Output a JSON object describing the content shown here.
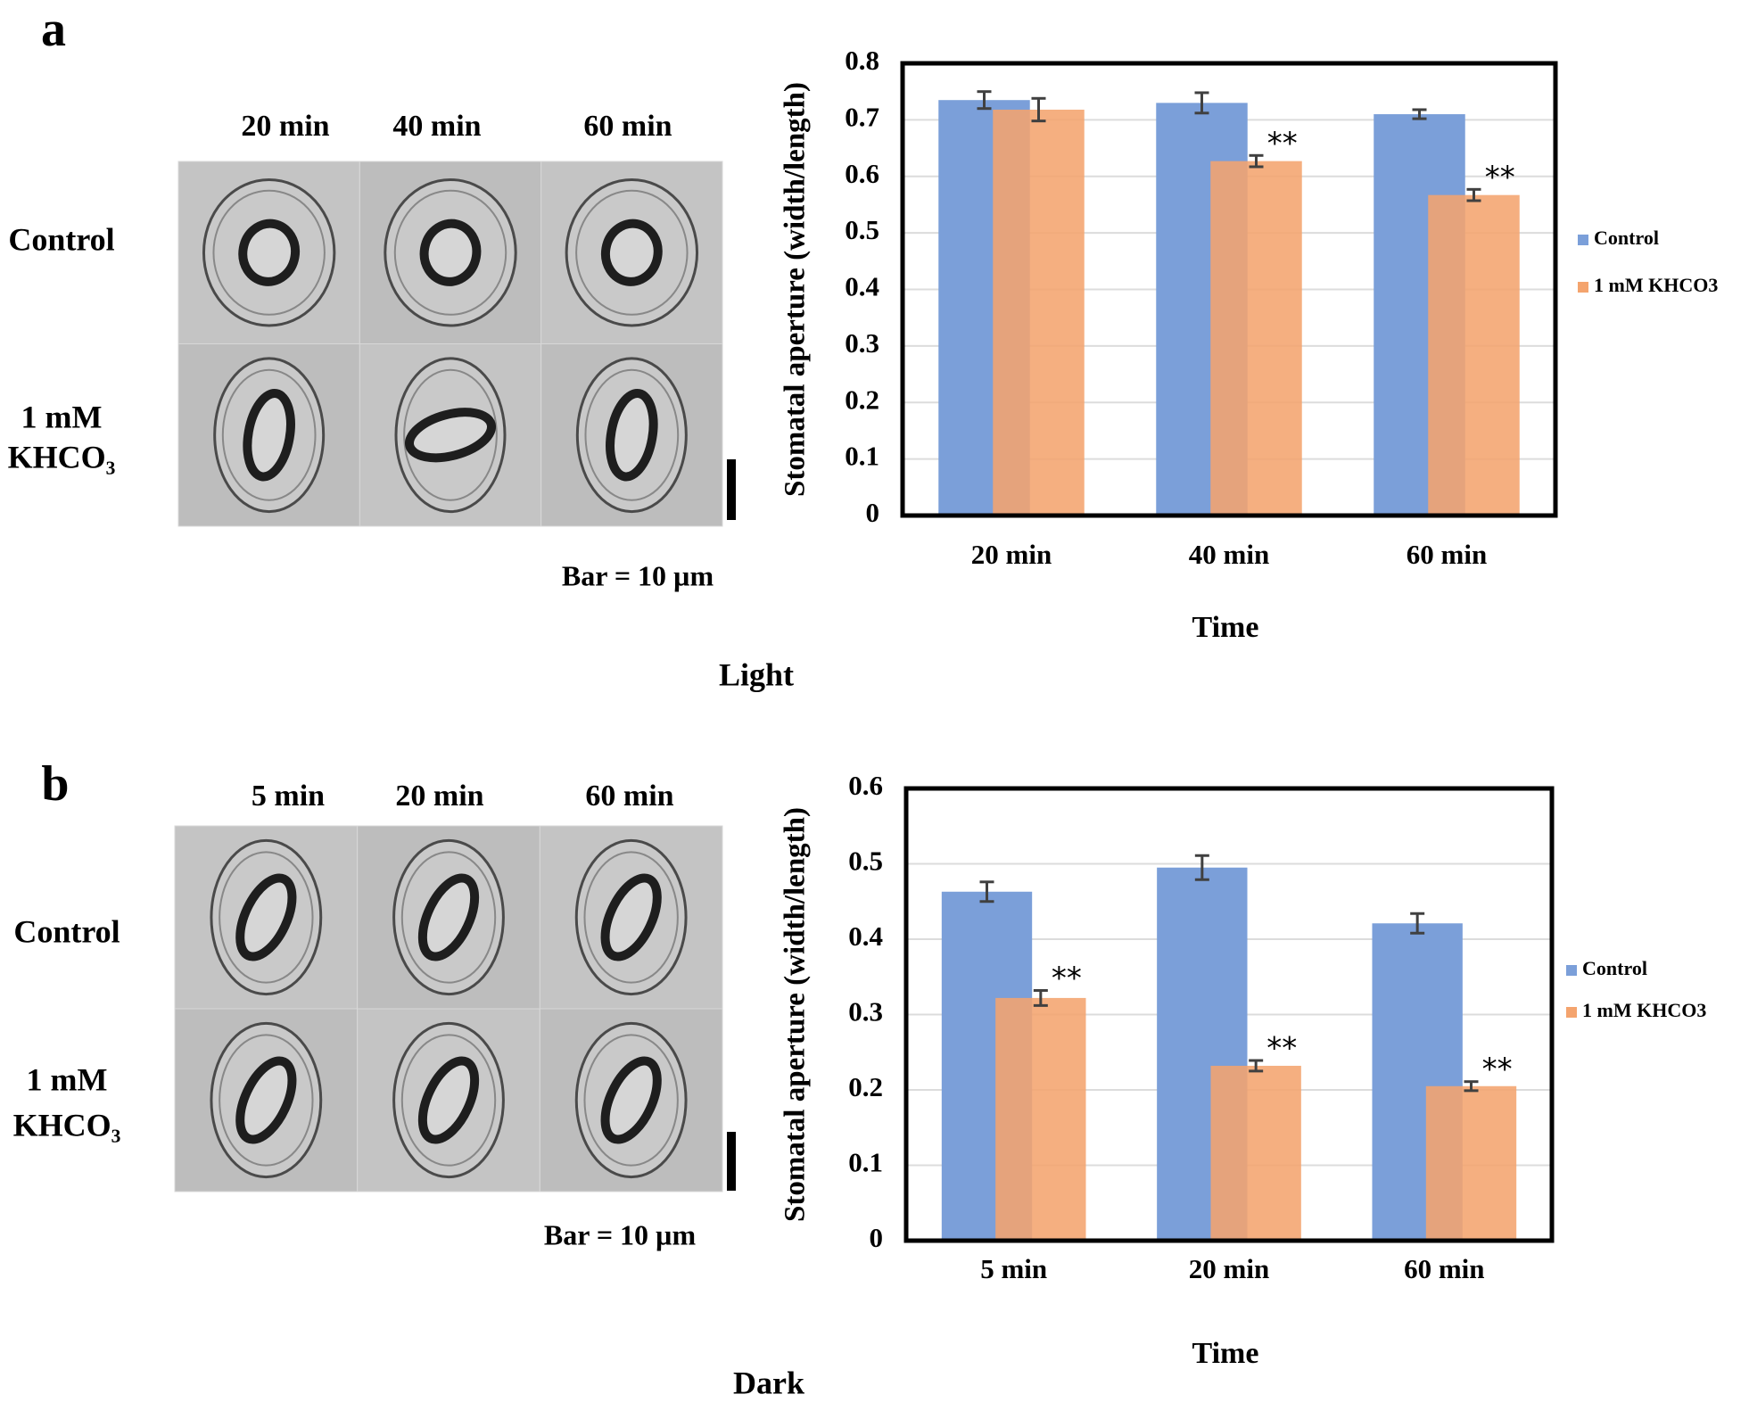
{
  "panels": [
    {
      "label": "a",
      "columns": [
        "20 min",
        "40 min",
        "60 min"
      ],
      "rows": [
        [
          "Control"
        ],
        [
          "1 mM",
          "KHCO₃"
        ]
      ],
      "scale_bar": "Bar = 10 µm",
      "condition": "Light"
    },
    {
      "label": "b",
      "columns": [
        "5 min",
        "20 min",
        "60 min"
      ],
      "rows": [
        [
          "Control"
        ],
        [
          "1 mM",
          "KHCO₃"
        ]
      ],
      "scale_bar": "Bar = 10 µm",
      "condition": "Dark"
    }
  ],
  "chart_data": [
    {
      "type": "bar",
      "x_label": "Time",
      "y_label": "Stomatal aperture (width/length)",
      "categories": [
        "20 min",
        "40 min",
        "60 min"
      ],
      "series": [
        {
          "name": "Control",
          "color": "#7b9fd9",
          "values": [
            0.735,
            0.73,
            0.71
          ],
          "errors": [
            0.015,
            0.018,
            0.008
          ]
        },
        {
          "name": "1 mM KHCO3",
          "color": "#f4a46e",
          "values": [
            0.718,
            0.627,
            0.567
          ],
          "errors": [
            0.02,
            0.01,
            0.01
          ],
          "markers": [
            null,
            "**",
            "**"
          ]
        }
      ],
      "ylim": [
        0,
        0.8
      ],
      "yticks": [
        0,
        0.1,
        0.2,
        0.3,
        0.4,
        0.5,
        0.6,
        0.7,
        0.8
      ],
      "grid": true,
      "legend": "right"
    },
    {
      "type": "bar",
      "x_label": "Time",
      "y_label": "Stomatal aperture (width/length)",
      "categories": [
        "5 min",
        "20 min",
        "60 min"
      ],
      "series": [
        {
          "name": "Control",
          "color": "#7b9fd9",
          "values": [
            0.463,
            0.495,
            0.421
          ],
          "errors": [
            0.013,
            0.016,
            0.013
          ]
        },
        {
          "name": "1 mM KHCO3",
          "color": "#f4a46e",
          "values": [
            0.322,
            0.232,
            0.205
          ],
          "errors": [
            0.01,
            0.007,
            0.006
          ],
          "markers": [
            "**",
            "**",
            "**"
          ]
        }
      ],
      "ylim": [
        0,
        0.6
      ],
      "yticks": [
        0,
        0.1,
        0.2,
        0.3,
        0.4,
        0.5,
        0.6
      ],
      "grid": true,
      "legend": "right"
    }
  ]
}
